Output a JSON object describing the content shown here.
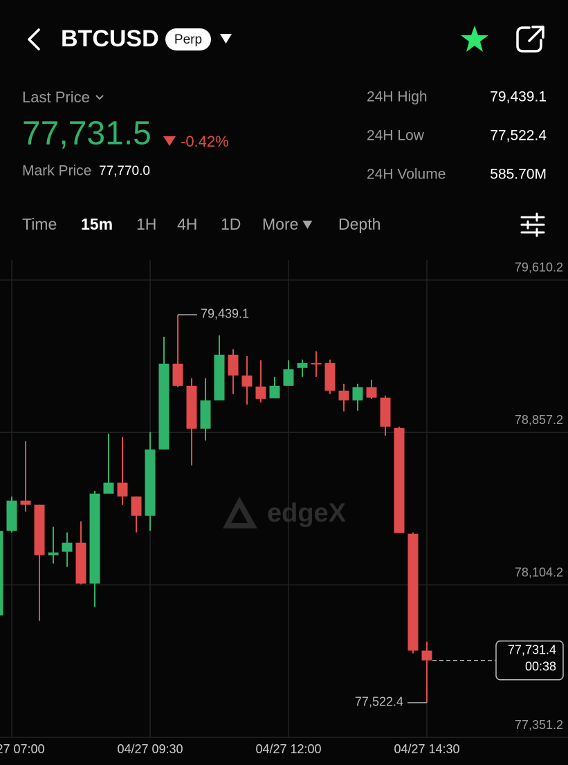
{
  "header": {
    "symbol": "BTCUSD",
    "badge": "Perp"
  },
  "price": {
    "label": "Last Price",
    "value": "77,731.5",
    "change": "-0.42%",
    "mark_label": "Mark Price",
    "mark_value": "77,770.0"
  },
  "stats": [
    {
      "label": "24H High",
      "value": "79,439.1"
    },
    {
      "label": "24H Low",
      "value": "77,522.4"
    },
    {
      "label": "24H Volume",
      "value": "585.70M"
    }
  ],
  "tabs": [
    "Time",
    "15m",
    "1H",
    "4H",
    "1D",
    "More",
    "Depth"
  ],
  "active_tab": 1,
  "chart_data": {
    "type": "candlestick",
    "x": [
      null,
      "04/27 07:00",
      null,
      null,
      null,
      null,
      null,
      null,
      null,
      null,
      null,
      "04/27 09:30",
      null,
      null,
      null,
      null,
      null,
      null,
      null,
      null,
      null,
      "04/27 12:00",
      null,
      null,
      null,
      null,
      null,
      null,
      null,
      null,
      null,
      "04/27 14:30"
    ],
    "open": [
      77953.9,
      78370.6,
      78520.8,
      78500.3,
      78251.0,
      78268.1,
      78312.5,
      78111.0,
      78555.0,
      78609.6,
      78541.3,
      78445.7,
      78773.5,
      79197.0,
      79087.7,
      78876.0,
      79016.0,
      79241.4,
      79138.9,
      79084.3,
      79026.2,
      79087.7,
      79176.5,
      79200.4,
      79200.4,
      79063.8,
      79016.0,
      79080.9,
      79029.6,
      78879.4,
      78356.9,
      77779.8
    ],
    "high": [
      78397.9,
      78541.3,
      78814.5,
      78500.3,
      78391.0,
      78363.7,
      78418.4,
      78568.6,
      78852.1,
      78835.0,
      78541.3,
      78858.9,
      79330.2,
      79439.1,
      79125.3,
      79125.3,
      79337.0,
      79268.7,
      79234.5,
      79214.1,
      79132.1,
      79214.1,
      79217.5,
      79258.5,
      79217.5,
      79097.9,
      79097.9,
      79118.4,
      79039.9,
      78886.2,
      78363.7,
      77824.2
    ],
    "low": [
      77947.1,
      78363.7,
      78466.2,
      77926.6,
      78210.0,
      78193.0,
      78107.6,
      77994.9,
      78555.0,
      78500.3,
      78363.7,
      78370.6,
      78773.5,
      79080.9,
      78695.0,
      78817.9,
      79016.0,
      79046.7,
      78995.5,
      79005.7,
      79026.2,
      79087.7,
      79132.1,
      79132.1,
      79046.7,
      78961.3,
      78964.8,
      79022.8,
      78841.8,
      78360.3,
      77766.1,
      77522.4
    ],
    "close": [
      78370.6,
      78520.8,
      78500.3,
      78251.0,
      78264.7,
      78312.5,
      78111.0,
      78555.0,
      78609.6,
      78541.3,
      78445.7,
      78773.5,
      79197.0,
      79087.7,
      78876.0,
      79016.0,
      79241.4,
      79138.9,
      79084.3,
      79022.8,
      79087.7,
      79169.7,
      79200.4,
      79193.6,
      79063.8,
      79016.0,
      79080.9,
      79029.6,
      78886.2,
      78360.3,
      77779.8,
      77731.4
    ],
    "up_color": "#2fb36a",
    "down_color": "#e04b4b",
    "ylim": [
      77351.2,
      79709.0
    ],
    "yticks": [
      {
        "value": 77351.2,
        "label": "77,351.2"
      },
      {
        "value": 78104.2,
        "label": "78,104.2"
      },
      {
        "value": 78857.2,
        "label": "78,857.2"
      },
      {
        "value": 79610.2,
        "label": "79,610.2"
      }
    ],
    "grid": true,
    "high_marker": {
      "value": 79439.1,
      "label": "79,439.1"
    },
    "low_marker": {
      "value": 77522.4,
      "label": "77,522.4"
    },
    "last_price": {
      "value": 77731.4,
      "label": "77,731.4"
    },
    "countdown": "00:38",
    "watermark": "edgeX"
  }
}
